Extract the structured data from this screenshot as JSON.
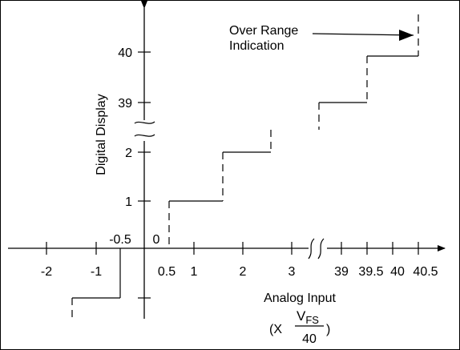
{
  "chart_data": {
    "type": "line",
    "xlabel": "Analog Input",
    "xlabel_unit": {
      "prefix": "(X",
      "numerator": "V",
      "numerator_sub": "FS",
      "denominator": "40",
      "suffix": ")"
    },
    "ylabel": "Digital Display",
    "x_ticks": [
      "-2",
      "-1",
      "-0.5",
      "0.5",
      "1",
      "2",
      "3",
      "39",
      "39.5",
      "40",
      "40.5"
    ],
    "y_ticks": [
      "40",
      "39",
      "2",
      "1",
      "0"
    ],
    "x_axis_break": "between 3 and 39",
    "y_axis_break": "between 2 and 39",
    "annotation": {
      "line1": "Over Range",
      "line2": "Indication"
    },
    "series": [
      {
        "points": [
          {
            "x": -1.5,
            "y": -1
          },
          {
            "x": -0.5,
            "y": -1
          },
          {
            "x": -0.5,
            "y": 0
          },
          {
            "x": 0.5,
            "y": 0
          },
          {
            "x": 0.5,
            "y": 1
          },
          {
            "x": 1.5,
            "y": 1
          },
          {
            "x": 1.5,
            "y": 2
          },
          {
            "x": 2.5,
            "y": 2
          },
          {
            "x": 38.5,
            "y": 39
          },
          {
            "x": 39.5,
            "y": 39
          },
          {
            "x": 39.5,
            "y": 40
          },
          {
            "x": 40.5,
            "y": 40
          },
          {
            "x": 40.5,
            "y": "over range"
          }
        ]
      }
    ]
  }
}
